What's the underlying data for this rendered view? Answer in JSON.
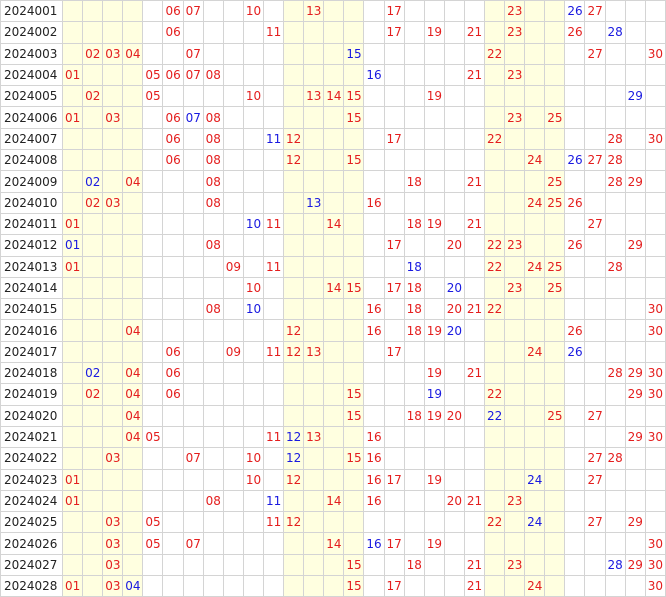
{
  "palette": {
    "red": "#e41e1e",
    "blue": "#1a1ae0",
    "shade": "#ffffe0",
    "grid": "#d4d4d4"
  },
  "shaded_columns": [
    1,
    2,
    3,
    4,
    12,
    13,
    14,
    15,
    22,
    23,
    24,
    25
  ],
  "rows": [
    {
      "issue": "2024001",
      "cells": [
        [
          6,
          "r"
        ],
        [
          7,
          "r"
        ],
        [
          10,
          "r"
        ],
        [
          13,
          "r"
        ],
        [
          17,
          "r"
        ],
        [
          23,
          "r"
        ],
        [
          26,
          "b"
        ],
        [
          27,
          "r"
        ]
      ]
    },
    {
      "issue": "2024002",
      "cells": [
        [
          6,
          "r"
        ],
        [
          11,
          "r"
        ],
        [
          17,
          "r"
        ],
        [
          19,
          "r"
        ],
        [
          21,
          "r"
        ],
        [
          23,
          "r"
        ],
        [
          26,
          "r"
        ],
        [
          28,
          "b"
        ]
      ]
    },
    {
      "issue": "2024003",
      "cells": [
        [
          2,
          "r"
        ],
        [
          3,
          "r"
        ],
        [
          4,
          "r"
        ],
        [
          7,
          "r"
        ],
        [
          15,
          "b"
        ],
        [
          22,
          "r"
        ],
        [
          27,
          "r"
        ],
        [
          30,
          "r"
        ]
      ]
    },
    {
      "issue": "2024004",
      "cells": [
        [
          1,
          "r"
        ],
        [
          5,
          "r"
        ],
        [
          6,
          "r"
        ],
        [
          7,
          "r"
        ],
        [
          8,
          "r"
        ],
        [
          16,
          "b"
        ],
        [
          21,
          "r"
        ],
        [
          23,
          "r"
        ]
      ]
    },
    {
      "issue": "2024005",
      "cells": [
        [
          2,
          "r"
        ],
        [
          5,
          "r"
        ],
        [
          10,
          "r"
        ],
        [
          13,
          "r"
        ],
        [
          14,
          "r"
        ],
        [
          15,
          "r"
        ],
        [
          19,
          "r"
        ],
        [
          29,
          "b"
        ]
      ]
    },
    {
      "issue": "2024006",
      "cells": [
        [
          1,
          "r"
        ],
        [
          3,
          "r"
        ],
        [
          6,
          "r"
        ],
        [
          7,
          "b"
        ],
        [
          8,
          "r"
        ],
        [
          15,
          "r"
        ],
        [
          23,
          "r"
        ],
        [
          25,
          "r"
        ]
      ]
    },
    {
      "issue": "2024007",
      "cells": [
        [
          6,
          "r"
        ],
        [
          8,
          "r"
        ],
        [
          11,
          "b"
        ],
        [
          12,
          "r"
        ],
        [
          17,
          "r"
        ],
        [
          22,
          "r"
        ],
        [
          28,
          "r"
        ],
        [
          30,
          "r"
        ]
      ]
    },
    {
      "issue": "2024008",
      "cells": [
        [
          6,
          "r"
        ],
        [
          8,
          "r"
        ],
        [
          12,
          "r"
        ],
        [
          15,
          "r"
        ],
        [
          24,
          "r"
        ],
        [
          26,
          "b"
        ],
        [
          27,
          "r"
        ],
        [
          28,
          "r"
        ]
      ]
    },
    {
      "issue": "2024009",
      "cells": [
        [
          2,
          "b"
        ],
        [
          4,
          "r"
        ],
        [
          8,
          "r"
        ],
        [
          18,
          "r"
        ],
        [
          21,
          "r"
        ],
        [
          25,
          "r"
        ],
        [
          28,
          "r"
        ],
        [
          29,
          "r"
        ]
      ]
    },
    {
      "issue": "2024010",
      "cells": [
        [
          2,
          "r"
        ],
        [
          3,
          "r"
        ],
        [
          8,
          "r"
        ],
        [
          13,
          "b"
        ],
        [
          16,
          "r"
        ],
        [
          24,
          "r"
        ],
        [
          25,
          "r"
        ],
        [
          26,
          "r"
        ]
      ]
    },
    {
      "issue": "2024011",
      "cells": [
        [
          1,
          "r"
        ],
        [
          10,
          "b"
        ],
        [
          11,
          "r"
        ],
        [
          14,
          "r"
        ],
        [
          18,
          "r"
        ],
        [
          19,
          "r"
        ],
        [
          21,
          "r"
        ],
        [
          27,
          "r"
        ]
      ]
    },
    {
      "issue": "2024012",
      "cells": [
        [
          1,
          "b"
        ],
        [
          8,
          "r"
        ],
        [
          17,
          "r"
        ],
        [
          20,
          "r"
        ],
        [
          22,
          "r"
        ],
        [
          23,
          "r"
        ],
        [
          26,
          "r"
        ],
        [
          29,
          "r"
        ]
      ]
    },
    {
      "issue": "2024013",
      "cells": [
        [
          1,
          "r"
        ],
        [
          9,
          "r"
        ],
        [
          11,
          "r"
        ],
        [
          18,
          "b"
        ],
        [
          22,
          "r"
        ],
        [
          24,
          "r"
        ],
        [
          25,
          "r"
        ],
        [
          28,
          "r"
        ]
      ]
    },
    {
      "issue": "2024014",
      "cells": [
        [
          10,
          "r"
        ],
        [
          14,
          "r"
        ],
        [
          15,
          "r"
        ],
        [
          17,
          "r"
        ],
        [
          18,
          "r"
        ],
        [
          20,
          "b"
        ],
        [
          23,
          "r"
        ],
        [
          25,
          "r"
        ]
      ]
    },
    {
      "issue": "2024015",
      "cells": [
        [
          8,
          "r"
        ],
        [
          10,
          "b"
        ],
        [
          16,
          "r"
        ],
        [
          18,
          "r"
        ],
        [
          20,
          "r"
        ],
        [
          21,
          "r"
        ],
        [
          22,
          "r"
        ],
        [
          30,
          "r"
        ]
      ]
    },
    {
      "issue": "2024016",
      "cells": [
        [
          4,
          "r"
        ],
        [
          12,
          "r"
        ],
        [
          16,
          "r"
        ],
        [
          18,
          "r"
        ],
        [
          19,
          "r"
        ],
        [
          20,
          "b"
        ],
        [
          26,
          "r"
        ],
        [
          30,
          "r"
        ]
      ]
    },
    {
      "issue": "2024017",
      "cells": [
        [
          6,
          "r"
        ],
        [
          9,
          "r"
        ],
        [
          11,
          "r"
        ],
        [
          12,
          "r"
        ],
        [
          13,
          "r"
        ],
        [
          17,
          "r"
        ],
        [
          24,
          "r"
        ],
        [
          26,
          "b"
        ]
      ]
    },
    {
      "issue": "2024018",
      "cells": [
        [
          2,
          "b"
        ],
        [
          4,
          "r"
        ],
        [
          6,
          "r"
        ],
        [
          19,
          "r"
        ],
        [
          21,
          "r"
        ],
        [
          28,
          "r"
        ],
        [
          29,
          "r"
        ],
        [
          30,
          "r"
        ]
      ]
    },
    {
      "issue": "2024019",
      "cells": [
        [
          2,
          "r"
        ],
        [
          4,
          "r"
        ],
        [
          6,
          "r"
        ],
        [
          15,
          "r"
        ],
        [
          19,
          "b"
        ],
        [
          22,
          "r"
        ],
        [
          29,
          "r"
        ],
        [
          30,
          "r"
        ]
      ]
    },
    {
      "issue": "2024020",
      "cells": [
        [
          4,
          "r"
        ],
        [
          15,
          "r"
        ],
        [
          18,
          "r"
        ],
        [
          19,
          "r"
        ],
        [
          20,
          "r"
        ],
        [
          22,
          "b"
        ],
        [
          25,
          "r"
        ],
        [
          27,
          "r"
        ]
      ]
    },
    {
      "issue": "2024021",
      "cells": [
        [
          4,
          "r"
        ],
        [
          5,
          "r"
        ],
        [
          11,
          "r"
        ],
        [
          12,
          "b"
        ],
        [
          13,
          "r"
        ],
        [
          16,
          "r"
        ],
        [
          29,
          "r"
        ],
        [
          30,
          "r"
        ]
      ]
    },
    {
      "issue": "2024022",
      "cells": [
        [
          3,
          "r"
        ],
        [
          7,
          "r"
        ],
        [
          10,
          "r"
        ],
        [
          12,
          "b"
        ],
        [
          15,
          "r"
        ],
        [
          16,
          "r"
        ],
        [
          27,
          "r"
        ],
        [
          28,
          "r"
        ]
      ]
    },
    {
      "issue": "2024023",
      "cells": [
        [
          1,
          "r"
        ],
        [
          10,
          "r"
        ],
        [
          12,
          "r"
        ],
        [
          16,
          "r"
        ],
        [
          17,
          "r"
        ],
        [
          19,
          "r"
        ],
        [
          24,
          "b"
        ],
        [
          27,
          "r"
        ]
      ]
    },
    {
      "issue": "2024024",
      "cells": [
        [
          1,
          "r"
        ],
        [
          8,
          "r"
        ],
        [
          11,
          "b"
        ],
        [
          14,
          "r"
        ],
        [
          16,
          "r"
        ],
        [
          20,
          "r"
        ],
        [
          21,
          "r"
        ],
        [
          23,
          "r"
        ]
      ]
    },
    {
      "issue": "2024025",
      "cells": [
        [
          3,
          "r"
        ],
        [
          5,
          "r"
        ],
        [
          11,
          "r"
        ],
        [
          12,
          "r"
        ],
        [
          22,
          "r"
        ],
        [
          24,
          "b"
        ],
        [
          27,
          "r"
        ],
        [
          29,
          "r"
        ]
      ]
    },
    {
      "issue": "2024026",
      "cells": [
        [
          3,
          "r"
        ],
        [
          5,
          "r"
        ],
        [
          7,
          "r"
        ],
        [
          14,
          "r"
        ],
        [
          16,
          "b"
        ],
        [
          17,
          "r"
        ],
        [
          19,
          "r"
        ],
        [
          30,
          "r"
        ]
      ]
    },
    {
      "issue": "2024027",
      "cells": [
        [
          3,
          "r"
        ],
        [
          15,
          "r"
        ],
        [
          18,
          "r"
        ],
        [
          21,
          "r"
        ],
        [
          23,
          "r"
        ],
        [
          28,
          "b"
        ],
        [
          29,
          "r"
        ],
        [
          30,
          "r"
        ]
      ]
    },
    {
      "issue": "2024028",
      "cells": [
        [
          1,
          "r"
        ],
        [
          3,
          "r"
        ],
        [
          4,
          "b"
        ],
        [
          15,
          "r"
        ],
        [
          17,
          "r"
        ],
        [
          21,
          "r"
        ],
        [
          24,
          "r"
        ],
        [
          30,
          "r"
        ]
      ]
    }
  ]
}
